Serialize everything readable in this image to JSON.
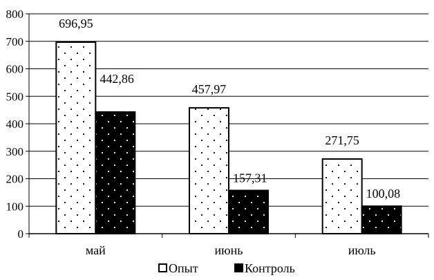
{
  "chart_data": {
    "type": "bar",
    "categories": [
      "май",
      "июнь",
      "июль"
    ],
    "series": [
      {
        "name": "Опыт",
        "values": [
          696.95,
          457.97,
          271.75
        ],
        "labels": [
          "696,95",
          "457,97",
          "271,75"
        ],
        "fill": "dotted-white"
      },
      {
        "name": "Контроль",
        "values": [
          442.86,
          157.31,
          100.08
        ],
        "labels": [
          "442,86",
          "157,31",
          "100,08"
        ],
        "fill": "dotted-black"
      }
    ],
    "title": "",
    "xlabel": "",
    "ylabel": "",
    "ylim": [
      0,
      800
    ],
    "yticks": [
      0,
      100,
      200,
      300,
      400,
      500,
      600,
      700,
      800
    ],
    "grid": true,
    "legend_position": "bottom"
  },
  "colors": {
    "bar_light": "#ffffff",
    "bar_dark": "#000000",
    "grid": "#000000"
  }
}
